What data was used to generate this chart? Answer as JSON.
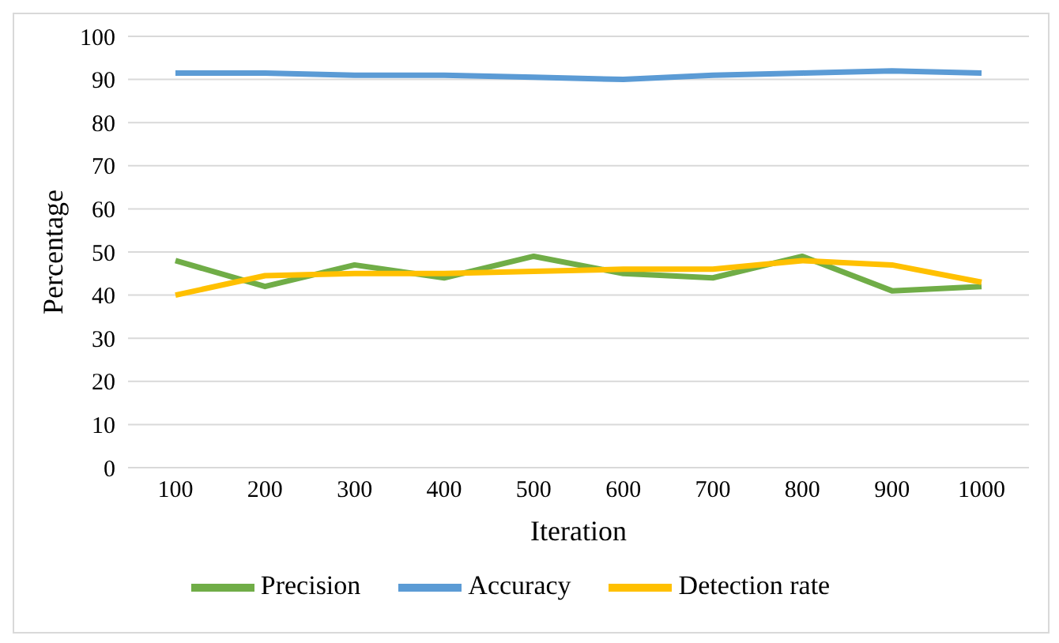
{
  "chart_data": {
    "type": "line",
    "xlabel": "Iteration",
    "ylabel": "Percentage",
    "categories": [
      "100",
      "200",
      "300",
      "400",
      "500",
      "600",
      "700",
      "800",
      "900",
      "1000"
    ],
    "series": [
      {
        "name": "Precision",
        "color": "#70ad47",
        "values": [
          48,
          42,
          47,
          44,
          49,
          45,
          44,
          49,
          41,
          42
        ]
      },
      {
        "name": "Accuracy",
        "color": "#5b9bd5",
        "values": [
          91.5,
          91.5,
          91,
          91,
          90.5,
          90,
          91,
          91.5,
          92,
          91.5
        ]
      },
      {
        "name": "Detection rate",
        "color": "#ffc000",
        "values": [
          40,
          44.5,
          45,
          45,
          45.5,
          46,
          46,
          48,
          47,
          43
        ]
      }
    ],
    "ylim": [
      0,
      100
    ],
    "yticks": [
      0,
      10,
      20,
      30,
      40,
      50,
      60,
      70,
      80,
      90,
      100
    ],
    "grid": "y",
    "legend": "bottom",
    "marker": "none",
    "line_style": "solid"
  }
}
